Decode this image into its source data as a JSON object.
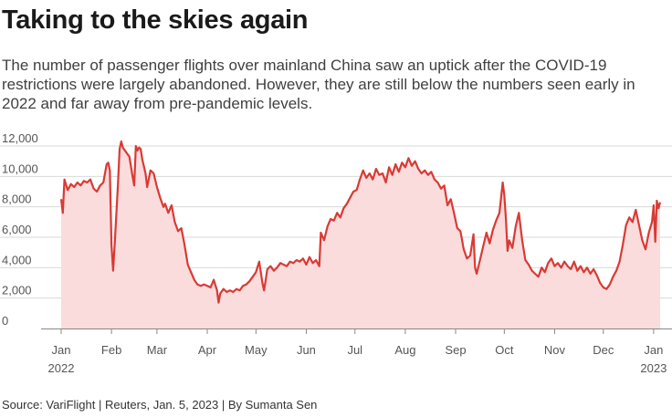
{
  "title": "Taking to the skies again",
  "subtitle": "The number of passenger flights over mainland China saw an uptick after the COVID-19 restrictions were largely abandoned. However, they are still below the numbers seen early in 2022 and far away from pre-pandemic levels.",
  "source": "Source: VariFlight | Reuters, Jan. 5, 2023 | By Sumanta Sen",
  "colors": {
    "line": "#d93a35",
    "fill": "#fadcdc",
    "grid": "#d9d9d9",
    "axis": "#888888"
  },
  "chart_data": {
    "type": "area",
    "title": "",
    "xlabel": "",
    "ylabel": "",
    "ylim": [
      0,
      12000
    ],
    "y_ticks": [
      0,
      2000,
      4000,
      6000,
      8000,
      10000,
      12000
    ],
    "y_tick_labels": [
      "0",
      "2,000",
      "4,000",
      "6,000",
      "8,000",
      "10,000",
      "12,000"
    ],
    "x_tick_labels": [
      {
        "date": "2022-01-01",
        "label": "Jan",
        "sub": "2022"
      },
      {
        "date": "2022-02-01",
        "label": "Feb",
        "sub": ""
      },
      {
        "date": "2022-03-01",
        "label": "Mar",
        "sub": ""
      },
      {
        "date": "2022-04-01",
        "label": "Apr",
        "sub": ""
      },
      {
        "date": "2022-05-01",
        "label": "May",
        "sub": ""
      },
      {
        "date": "2022-06-01",
        "label": "Jun",
        "sub": ""
      },
      {
        "date": "2022-07-01",
        "label": "Jul",
        "sub": ""
      },
      {
        "date": "2022-08-01",
        "label": "Aug",
        "sub": ""
      },
      {
        "date": "2022-09-01",
        "label": "Sep",
        "sub": ""
      },
      {
        "date": "2022-10-01",
        "label": "Oct",
        "sub": ""
      },
      {
        "date": "2022-11-01",
        "label": "Nov",
        "sub": ""
      },
      {
        "date": "2022-12-01",
        "label": "Dec",
        "sub": ""
      },
      {
        "date": "2023-01-01",
        "label": "Jan",
        "sub": "2023"
      }
    ],
    "grid": true,
    "series": [
      {
        "points": [
          [
            "2022-01-01",
            8500
          ],
          [
            "2022-01-02",
            7600
          ],
          [
            "2022-01-03",
            9800
          ],
          [
            "2022-01-05",
            9100
          ],
          [
            "2022-01-07",
            9500
          ],
          [
            "2022-01-09",
            9300
          ],
          [
            "2022-01-11",
            9600
          ],
          [
            "2022-01-13",
            9400
          ],
          [
            "2022-01-15",
            9700
          ],
          [
            "2022-01-17",
            9600
          ],
          [
            "2022-01-19",
            9800
          ],
          [
            "2022-01-21",
            9200
          ],
          [
            "2022-01-23",
            9000
          ],
          [
            "2022-01-25",
            9400
          ],
          [
            "2022-01-27",
            9600
          ],
          [
            "2022-01-29",
            10800
          ],
          [
            "2022-01-30",
            10900
          ],
          [
            "2022-01-31",
            10400
          ],
          [
            "2022-02-01",
            5500
          ],
          [
            "2022-02-02",
            3800
          ],
          [
            "2022-02-03",
            5600
          ],
          [
            "2022-02-05",
            9500
          ],
          [
            "2022-02-06",
            11800
          ],
          [
            "2022-02-07",
            12300
          ],
          [
            "2022-02-08",
            11900
          ],
          [
            "2022-02-10",
            11600
          ],
          [
            "2022-02-12",
            11300
          ],
          [
            "2022-02-14",
            10000
          ],
          [
            "2022-02-15",
            9400
          ],
          [
            "2022-02-16",
            12000
          ],
          [
            "2022-02-17",
            11700
          ],
          [
            "2022-02-18",
            11900
          ],
          [
            "2022-02-19",
            11800
          ],
          [
            "2022-02-20",
            11100
          ],
          [
            "2022-02-22",
            10200
          ],
          [
            "2022-02-23",
            9300
          ],
          [
            "2022-02-25",
            10400
          ],
          [
            "2022-02-27",
            10200
          ],
          [
            "2022-03-01",
            9300
          ],
          [
            "2022-03-03",
            8600
          ],
          [
            "2022-03-05",
            8000
          ],
          [
            "2022-03-06",
            8200
          ],
          [
            "2022-03-08",
            7600
          ],
          [
            "2022-03-10",
            8100
          ],
          [
            "2022-03-12",
            7000
          ],
          [
            "2022-03-14",
            6400
          ],
          [
            "2022-03-16",
            6600
          ],
          [
            "2022-03-18",
            5500
          ],
          [
            "2022-03-20",
            4200
          ],
          [
            "2022-03-22",
            3700
          ],
          [
            "2022-03-24",
            3200
          ],
          [
            "2022-03-26",
            2900
          ],
          [
            "2022-03-28",
            2800
          ],
          [
            "2022-03-30",
            2900
          ],
          [
            "2022-04-01",
            2800
          ],
          [
            "2022-04-03",
            2700
          ],
          [
            "2022-04-05",
            3200
          ],
          [
            "2022-04-07",
            2500
          ],
          [
            "2022-04-08",
            1700
          ],
          [
            "2022-04-09",
            2300
          ],
          [
            "2022-04-11",
            2600
          ],
          [
            "2022-04-13",
            2400
          ],
          [
            "2022-04-15",
            2500
          ],
          [
            "2022-04-17",
            2400
          ],
          [
            "2022-04-19",
            2600
          ],
          [
            "2022-04-21",
            2500
          ],
          [
            "2022-04-23",
            2800
          ],
          [
            "2022-04-25",
            2900
          ],
          [
            "2022-04-27",
            3100
          ],
          [
            "2022-04-29",
            3400
          ],
          [
            "2022-05-01",
            3700
          ],
          [
            "2022-05-03",
            4400
          ],
          [
            "2022-05-05",
            3000
          ],
          [
            "2022-05-06",
            2500
          ],
          [
            "2022-05-08",
            3900
          ],
          [
            "2022-05-10",
            4100
          ],
          [
            "2022-05-12",
            3800
          ],
          [
            "2022-05-14",
            4000
          ],
          [
            "2022-05-16",
            4300
          ],
          [
            "2022-05-18",
            4200
          ],
          [
            "2022-05-20",
            4100
          ],
          [
            "2022-05-22",
            4400
          ],
          [
            "2022-05-24",
            4300
          ],
          [
            "2022-05-26",
            4500
          ],
          [
            "2022-05-28",
            4400
          ],
          [
            "2022-05-30",
            4600
          ],
          [
            "2022-06-01",
            4200
          ],
          [
            "2022-06-03",
            4700
          ],
          [
            "2022-06-05",
            4300
          ],
          [
            "2022-06-07",
            4500
          ],
          [
            "2022-06-09",
            4100
          ],
          [
            "2022-06-10",
            6300
          ],
          [
            "2022-06-12",
            5800
          ],
          [
            "2022-06-14",
            6700
          ],
          [
            "2022-06-16",
            7200
          ],
          [
            "2022-06-18",
            7100
          ],
          [
            "2022-06-20",
            7600
          ],
          [
            "2022-06-22",
            7300
          ],
          [
            "2022-06-24",
            7900
          ],
          [
            "2022-06-26",
            8200
          ],
          [
            "2022-06-28",
            8600
          ],
          [
            "2022-06-30",
            9000
          ],
          [
            "2022-07-02",
            9100
          ],
          [
            "2022-07-04",
            9800
          ],
          [
            "2022-07-06",
            10400
          ],
          [
            "2022-07-08",
            9900
          ],
          [
            "2022-07-10",
            10200
          ],
          [
            "2022-07-12",
            9800
          ],
          [
            "2022-07-14",
            10500
          ],
          [
            "2022-07-16",
            10100
          ],
          [
            "2022-07-18",
            10200
          ],
          [
            "2022-07-20",
            9600
          ],
          [
            "2022-07-22",
            10600
          ],
          [
            "2022-07-24",
            10100
          ],
          [
            "2022-07-26",
            10800
          ],
          [
            "2022-07-28",
            10300
          ],
          [
            "2022-07-30",
            10900
          ],
          [
            "2022-08-01",
            10600
          ],
          [
            "2022-08-03",
            11200
          ],
          [
            "2022-08-05",
            10700
          ],
          [
            "2022-08-07",
            11000
          ],
          [
            "2022-08-09",
            10500
          ],
          [
            "2022-08-11",
            10200
          ],
          [
            "2022-08-13",
            10400
          ],
          [
            "2022-08-15",
            10100
          ],
          [
            "2022-08-17",
            10300
          ],
          [
            "2022-08-19",
            9800
          ],
          [
            "2022-08-21",
            9600
          ],
          [
            "2022-08-23",
            9200
          ],
          [
            "2022-08-25",
            9400
          ],
          [
            "2022-08-27",
            8100
          ],
          [
            "2022-08-29",
            8500
          ],
          [
            "2022-08-31",
            7600
          ],
          [
            "2022-09-02",
            6600
          ],
          [
            "2022-09-04",
            6400
          ],
          [
            "2022-09-06",
            5200
          ],
          [
            "2022-09-08",
            4600
          ],
          [
            "2022-09-10",
            4800
          ],
          [
            "2022-09-12",
            6200
          ],
          [
            "2022-09-13",
            4000
          ],
          [
            "2022-09-14",
            3600
          ],
          [
            "2022-09-16",
            4500
          ],
          [
            "2022-09-18",
            5400
          ],
          [
            "2022-09-20",
            6300
          ],
          [
            "2022-09-22",
            5600
          ],
          [
            "2022-09-24",
            6500
          ],
          [
            "2022-09-26",
            7100
          ],
          [
            "2022-09-28",
            7600
          ],
          [
            "2022-09-30",
            9600
          ],
          [
            "2022-10-01",
            8800
          ],
          [
            "2022-10-02",
            7200
          ],
          [
            "2022-10-03",
            5100
          ],
          [
            "2022-10-04",
            5800
          ],
          [
            "2022-10-06",
            5300
          ],
          [
            "2022-10-08",
            6700
          ],
          [
            "2022-10-10",
            7600
          ],
          [
            "2022-10-12",
            5800
          ],
          [
            "2022-10-14",
            4500
          ],
          [
            "2022-10-16",
            4200
          ],
          [
            "2022-10-18",
            3800
          ],
          [
            "2022-10-20",
            3600
          ],
          [
            "2022-10-22",
            3400
          ],
          [
            "2022-10-24",
            4000
          ],
          [
            "2022-10-26",
            3700
          ],
          [
            "2022-10-28",
            4300
          ],
          [
            "2022-10-30",
            4600
          ],
          [
            "2022-11-01",
            4100
          ],
          [
            "2022-11-03",
            4300
          ],
          [
            "2022-11-05",
            4000
          ],
          [
            "2022-11-07",
            4400
          ],
          [
            "2022-11-09",
            4100
          ],
          [
            "2022-11-11",
            3900
          ],
          [
            "2022-11-13",
            4400
          ],
          [
            "2022-11-15",
            3800
          ],
          [
            "2022-11-17",
            4100
          ],
          [
            "2022-11-19",
            3700
          ],
          [
            "2022-11-21",
            4000
          ],
          [
            "2022-11-23",
            3600
          ],
          [
            "2022-11-25",
            3900
          ],
          [
            "2022-11-27",
            3500
          ],
          [
            "2022-11-29",
            3000
          ],
          [
            "2022-12-01",
            2700
          ],
          [
            "2022-12-03",
            2600
          ],
          [
            "2022-12-05",
            2900
          ],
          [
            "2022-12-07",
            3400
          ],
          [
            "2022-12-09",
            3800
          ],
          [
            "2022-12-11",
            4400
          ],
          [
            "2022-12-13",
            5500
          ],
          [
            "2022-12-15",
            6800
          ],
          [
            "2022-12-17",
            7300
          ],
          [
            "2022-12-19",
            7000
          ],
          [
            "2022-12-21",
            7800
          ],
          [
            "2022-12-23",
            6800
          ],
          [
            "2022-12-25",
            5800
          ],
          [
            "2022-12-27",
            5200
          ],
          [
            "2022-12-29",
            6300
          ],
          [
            "2022-12-31",
            7000
          ],
          [
            "2023-01-01",
            8100
          ],
          [
            "2023-01-02",
            5700
          ],
          [
            "2023-01-03",
            8400
          ],
          [
            "2023-01-04",
            7900
          ],
          [
            "2023-01-05",
            8300
          ]
        ]
      }
    ]
  }
}
